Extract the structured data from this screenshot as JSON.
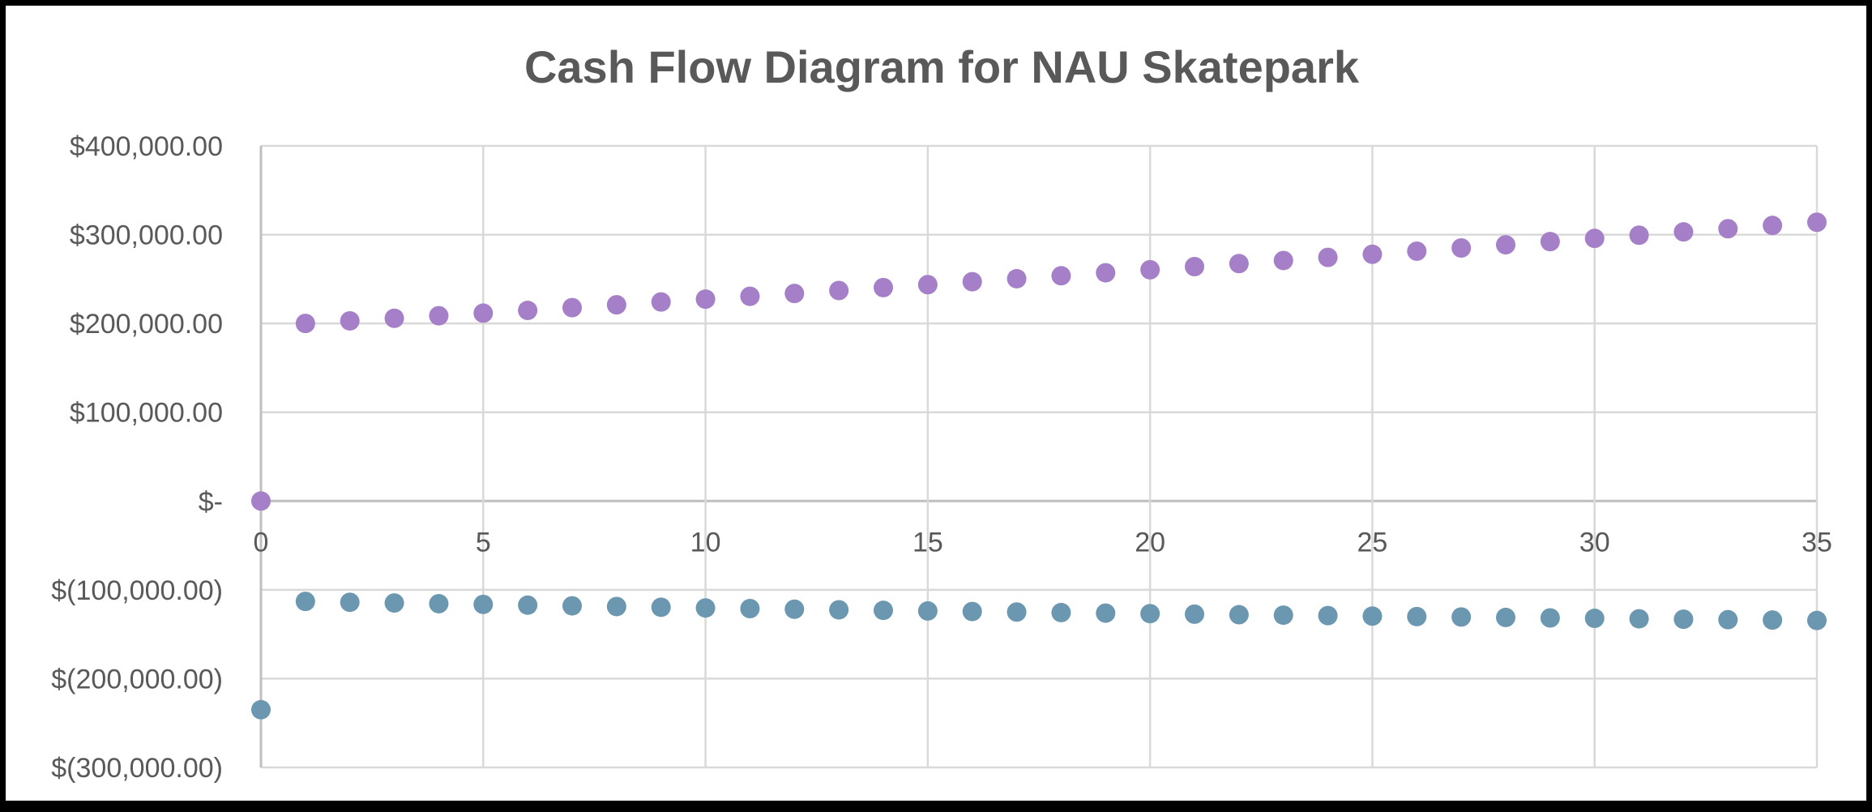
{
  "chart_data": {
    "type": "scatter",
    "title": "Cash Flow Diagram for NAU Skatepark",
    "xlabel": "",
    "ylabel": "",
    "xlim": [
      0,
      35
    ],
    "ylim": [
      -300000,
      400000
    ],
    "x_ticks": [
      0,
      5,
      10,
      15,
      20,
      25,
      30,
      35
    ],
    "x_tick_labels": [
      "0",
      "5",
      "10",
      "15",
      "20",
      "25",
      "30",
      "35"
    ],
    "y_ticks": [
      400000,
      300000,
      200000,
      100000,
      0,
      -100000,
      -200000,
      -300000
    ],
    "y_tick_labels": [
      "$400,000.00",
      "$300,000.00",
      "$200,000.00",
      "$100,000.00",
      "$-",
      "$(100,000.00)",
      "$(200,000.00)",
      "$(300,000.00)"
    ],
    "grid": true,
    "legend": "none",
    "series": [
      {
        "color": "#a57fc7",
        "x": [
          0,
          1,
          2,
          3,
          4,
          5,
          6,
          7,
          8,
          9,
          10,
          11,
          12,
          13,
          14,
          15,
          16,
          17,
          18,
          19,
          20,
          21,
          22,
          23,
          24,
          25,
          26,
          27,
          28,
          29,
          30,
          31,
          32,
          33,
          34,
          35
        ],
        "values": [
          0,
          200000,
          202900,
          205800,
          208700,
          211600,
          214700,
          217800,
          221000,
          224200,
          227400,
          230600,
          233800,
          237100,
          240400,
          243700,
          247000,
          250400,
          253700,
          257100,
          260500,
          264000,
          267400,
          270900,
          274400,
          277900,
          281400,
          285000,
          288600,
          292200,
          295800,
          299400,
          303100,
          306700,
          310400,
          314000
        ]
      },
      {
        "color": "#6b97b0",
        "x": [
          0,
          1,
          2,
          3,
          4,
          5,
          6,
          7,
          8,
          9,
          10,
          11,
          12,
          13,
          14,
          15,
          16,
          17,
          18,
          19,
          20,
          21,
          22,
          23,
          24,
          25,
          26,
          27,
          28,
          29,
          30,
          31,
          32,
          33,
          34,
          35
        ],
        "values": [
          -235000,
          -113000,
          -114000,
          -114800,
          -115600,
          -116400,
          -117200,
          -118000,
          -118800,
          -119600,
          -120400,
          -121100,
          -121800,
          -122500,
          -123100,
          -123800,
          -124400,
          -125000,
          -125600,
          -126200,
          -126800,
          -127400,
          -128000,
          -128500,
          -129000,
          -129600,
          -130100,
          -130600,
          -131100,
          -131600,
          -132100,
          -132600,
          -133100,
          -133600,
          -134000,
          -134500
        ]
      }
    ]
  }
}
